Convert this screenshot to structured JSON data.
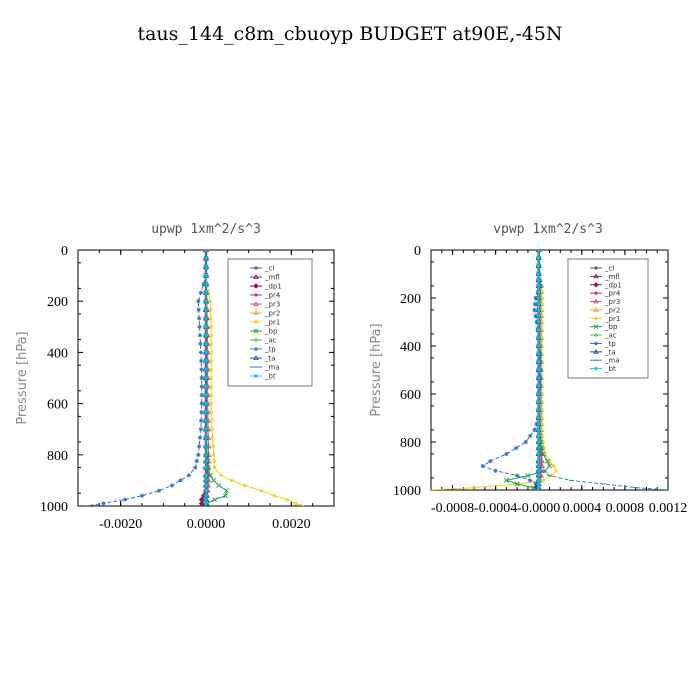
{
  "title": "taus_144_c8m_cbuoyp  BUDGET at90E,-45N",
  "chart_data": [
    {
      "type": "line",
      "title": "upwp   1xm^2/s^3",
      "xlabel": "",
      "ylabel": "Pressure [hPa]",
      "xlim": [
        -0.003,
        0.003
      ],
      "ylim": [
        1000,
        0
      ],
      "xticks": [
        -0.002,
        0.0,
        0.002
      ],
      "xtick_labels": [
        "-0.0020",
        "0.0000",
        "0.0020"
      ],
      "yticks": [
        0,
        200,
        400,
        600,
        800,
        1000
      ],
      "ytick_labels": [
        "0",
        "200",
        "400",
        "600",
        "800",
        "1000"
      ],
      "legend_position": "top-right",
      "pressure": [
        0,
        100,
        200,
        300,
        400,
        500,
        600,
        700,
        800,
        850,
        880,
        900,
        920,
        940,
        960,
        975,
        990,
        1000
      ],
      "series": [
        {
          "name": "_cl",
          "color": "#7a3fa0",
          "values": [
            0,
            0,
            0,
            0,
            0,
            0,
            0,
            0,
            0,
            0,
            0,
            0,
            0,
            0,
            0,
            0,
            0,
            0
          ]
        },
        {
          "name": "_mfl",
          "color": "#8b1a5a",
          "values": [
            0,
            0,
            0,
            0,
            0,
            0,
            0,
            0,
            0,
            0,
            0,
            0,
            0,
            0,
            0,
            0,
            0,
            0
          ]
        },
        {
          "name": "_dp1",
          "color": "#a01040",
          "values": [
            0,
            0,
            0,
            0,
            0,
            0,
            0,
            0,
            0,
            0,
            0,
            0,
            0,
            0,
            -5e-05,
            -0.0001,
            -0.0001,
            0
          ]
        },
        {
          "name": "_pr4",
          "color": "#c03050",
          "values": [
            0,
            0,
            0,
            0,
            0,
            0,
            0,
            0,
            2e-05,
            3e-05,
            4e-05,
            4e-05,
            4e-05,
            3e-05,
            2e-05,
            0.0,
            0.0,
            0
          ]
        },
        {
          "name": "_pr3",
          "color": "#e05070",
          "values": [
            0,
            0,
            2e-05,
            3e-05,
            4e-05,
            4e-05,
            4e-05,
            5e-05,
            6e-05,
            6e-05,
            6e-05,
            6e-05,
            5e-05,
            4e-05,
            3e-05,
            2e-05,
            1e-05,
            0
          ]
        },
        {
          "name": "_pr2",
          "color": "#f0a040",
          "values": [
            0,
            0,
            0,
            0,
            0,
            0,
            0,
            0,
            0,
            0,
            0,
            0,
            0,
            0,
            0,
            0,
            0,
            0
          ]
        },
        {
          "name": "_pr1",
          "color": "#f0d020",
          "values": [
            0,
            0,
            0.0001,
            0.00012,
            0.00012,
            0.00012,
            0.00012,
            0.00014,
            0.00018,
            0.0002,
            0.00035,
            0.0006,
            0.0009,
            0.0013,
            0.0016,
            0.0019,
            0.0021,
            0.0023
          ]
        },
        {
          "name": "_bp",
          "color": "#20a040",
          "values": [
            0,
            0,
            0,
            0,
            0,
            0,
            0,
            0,
            3e-05,
            5e-05,
            0.0001,
            0.00018,
            0.0003,
            0.00048,
            0.00046,
            0.0002,
            3e-05,
            0
          ]
        },
        {
          "name": "_ac",
          "color": "#40c860",
          "values": [
            0,
            0,
            0,
            0,
            0,
            0,
            0,
            0,
            0,
            0,
            0,
            0,
            0,
            0,
            0,
            0,
            0,
            0
          ]
        },
        {
          "name": "_tp",
          "color": "#3070d0",
          "values": [
            0,
            0,
            -0.00018,
            -0.00015,
            -0.00012,
            -0.0001,
            -0.0001,
            -0.00012,
            -0.00018,
            -0.00025,
            -0.0004,
            -0.0006,
            -0.0008,
            -0.0011,
            -0.0015,
            -0.0019,
            -0.0024,
            -0.0028
          ]
        },
        {
          "name": "_ta",
          "color": "#2050c0",
          "values": [
            0,
            0,
            0,
            0,
            0,
            0,
            0,
            0,
            0,
            0,
            0,
            0,
            0,
            0,
            0,
            0,
            0,
            0
          ]
        },
        {
          "name": "_ma",
          "color": "#2090b0",
          "values": [
            0,
            0,
            0,
            0,
            0,
            0,
            0,
            0,
            0,
            0,
            0,
            0,
            0,
            0,
            0,
            0,
            0,
            0
          ]
        },
        {
          "name": "_bt",
          "color": "#00c8e0",
          "values": [
            0,
            0,
            0,
            0,
            0,
            0,
            0,
            0,
            0,
            0,
            0,
            0,
            0,
            0,
            0,
            0,
            0,
            0
          ]
        }
      ]
    },
    {
      "type": "line",
      "title": "vpwp   1xm^2/s^3",
      "xlabel": "",
      "ylabel": "Pressure [hPa]",
      "xlim": [
        -0.001,
        0.0012
      ],
      "ylim": [
        1000,
        0
      ],
      "xticks": [
        -0.0008,
        -0.0004,
        0.0,
        0.0004,
        0.0008,
        0.0012
      ],
      "xtick_labels": [
        "-0.0008",
        "-0.0004",
        "-0.0000",
        "0.0004",
        "0.0008",
        "0.0012"
      ],
      "yticks": [
        0,
        200,
        400,
        600,
        800,
        1000
      ],
      "ytick_labels": [
        "0",
        "200",
        "400",
        "600",
        "800",
        "1000"
      ],
      "legend_position": "top-right",
      "pressure": [
        0,
        100,
        150,
        200,
        250,
        300,
        400,
        500,
        600,
        700,
        750,
        800,
        850,
        880,
        900,
        920,
        940,
        960,
        975,
        990,
        1000
      ],
      "series": [
        {
          "name": "_cl",
          "color": "#7a3fa0",
          "values": [
            0,
            0,
            0,
            0,
            0,
            0,
            0,
            0,
            0,
            0,
            0,
            0,
            0,
            0,
            0,
            0,
            0,
            0,
            0,
            0,
            0
          ]
        },
        {
          "name": "_mfl",
          "color": "#8b1a5a",
          "values": [
            0,
            0,
            0,
            0,
            0,
            0,
            0,
            0,
            0,
            0,
            0,
            0,
            0,
            0,
            0,
            0,
            0,
            0,
            0,
            0,
            0
          ]
        },
        {
          "name": "_dp1",
          "color": "#a01040",
          "values": [
            0,
            0,
            0,
            0,
            0,
            0,
            0,
            0,
            0,
            0,
            0,
            0,
            0,
            0,
            0,
            0,
            0,
            0,
            -2e-05,
            -3e-05,
            0
          ]
        },
        {
          "name": "_pr4",
          "color": "#c03050",
          "values": [
            0,
            0,
            0,
            0,
            0,
            0,
            0,
            0,
            0,
            0,
            0,
            1e-05,
            2e-05,
            2e-05,
            2e-05,
            2e-05,
            2e-05,
            1e-05,
            0,
            0,
            0
          ]
        },
        {
          "name": "_pr3",
          "color": "#e05070",
          "values": [
            0,
            0,
            2e-05,
            2e-05,
            2e-05,
            2e-05,
            2e-05,
            2e-05,
            2e-05,
            2e-05,
            2e-05,
            2e-05,
            3e-05,
            3e-05,
            3e-05,
            2e-05,
            2e-05,
            1e-05,
            0,
            0,
            0
          ]
        },
        {
          "name": "_pr2",
          "color": "#f0a040",
          "values": [
            0,
            0,
            0,
            0,
            0,
            0,
            0,
            0,
            0,
            0,
            0,
            0,
            0,
            0,
            0,
            0,
            0,
            0,
            0,
            0,
            0
          ]
        },
        {
          "name": "_pr1",
          "color": "#f0d020",
          "values": [
            0,
            0,
            3e-05,
            3e-05,
            3e-05,
            3e-05,
            3e-05,
            3e-05,
            3e-05,
            3e-05,
            3e-05,
            4e-05,
            6e-05,
            0.0001,
            0.00014,
            0.00016,
            0.00012,
            4e-05,
            -0.0002,
            -0.0006,
            -0.001
          ]
        },
        {
          "name": "_bp",
          "color": "#20a040",
          "values": [
            0,
            0,
            0,
            0,
            0,
            0,
            0,
            0,
            0,
            0,
            0,
            2e-05,
            4e-05,
            8e-05,
            0.0001,
            6e-05,
            -0.0001,
            -0.0003,
            -0.0002,
            -5e-05,
            0
          ]
        },
        {
          "name": "_ac",
          "color": "#40c860",
          "values": [
            0,
            0,
            0,
            0,
            0,
            0,
            0,
            0,
            0,
            0,
            0,
            0,
            0,
            0,
            0,
            0,
            0,
            0,
            0,
            0,
            0
          ]
        },
        {
          "name": "_tp",
          "color": "#3070d0",
          "values": [
            0,
            0,
            2e-05,
            -3e-05,
            -4e-05,
            -2e-05,
            1e-05,
            2e-05,
            1e-05,
            0.0,
            -4e-05,
            -0.00012,
            -0.0003,
            -0.00045,
            -0.00052,
            -0.0004,
            -0.0002,
            -8e-05,
            -2e-05,
            0,
            0
          ]
        },
        {
          "name": "_ta",
          "color": "#2050c0",
          "values": [
            0,
            0,
            0,
            0,
            0,
            0,
            0,
            0,
            0,
            0,
            0,
            0,
            0,
            0,
            0,
            0,
            0,
            0,
            0,
            0,
            0
          ]
        },
        {
          "name": "_ma",
          "color": "#2090b0",
          "values": [
            0,
            0,
            0,
            0,
            0,
            0,
            0,
            0,
            0,
            0,
            0,
            0,
            0,
            0,
            0,
            3e-05,
            0.0001,
            0.0003,
            0.0006,
            0.0009,
            0.0012
          ]
        },
        {
          "name": "_bt",
          "color": "#00c8e0",
          "values": [
            0,
            0,
            0,
            0,
            0,
            0,
            0,
            0,
            0,
            0,
            0,
            0,
            0,
            0,
            0,
            0,
            0,
            0,
            0,
            0,
            0
          ]
        }
      ]
    }
  ]
}
